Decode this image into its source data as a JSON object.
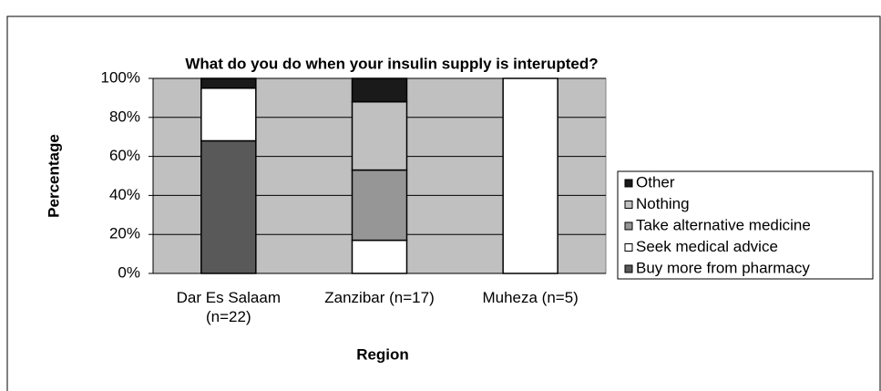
{
  "chart_data": {
    "type": "stacked_bar",
    "title": "What do you do when your insulin supply is interupted?",
    "x_label": "Region",
    "y_label": "Percentage",
    "categories": [
      "Dar Es Salaam (n=22)",
      "Zanzibar (n=17)",
      "Muheza (n=5)"
    ],
    "series": [
      {
        "name": "Buy more from pharmacy",
        "color": "#595959",
        "values": [
          68,
          0,
          0
        ]
      },
      {
        "name": "Seek medical advice",
        "color": "#ffffff",
        "values": [
          27,
          17,
          100
        ]
      },
      {
        "name": "Take alternative medicine",
        "color": "#969696",
        "values": [
          0,
          36,
          0
        ]
      },
      {
        "name": "Nothing",
        "color": "#c0c0c0",
        "values": [
          0,
          35,
          0
        ]
      },
      {
        "name": "Other",
        "color": "#1a1a1a",
        "values": [
          5,
          12,
          0
        ]
      }
    ],
    "ylim": [
      0,
      100
    ],
    "yticks": [
      {
        "value": 0,
        "label": "0%"
      },
      {
        "value": 20,
        "label": "20%"
      },
      {
        "value": 40,
        "label": "40%"
      },
      {
        "value": 60,
        "label": "60%"
      },
      {
        "value": 80,
        "label": "80%"
      },
      {
        "value": 100,
        "label": "100%"
      }
    ],
    "grid": true,
    "plot_background": "#c0c0c0",
    "legend": "right"
  }
}
